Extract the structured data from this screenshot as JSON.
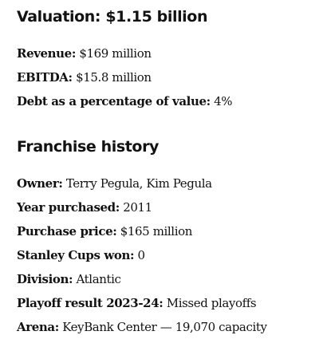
{
  "valuation_section": {
    "title": "Valuation: $1.15 billion",
    "items": [
      {
        "label": "Revenue:",
        "value": "$169 million"
      },
      {
        "label": "EBITDA:",
        "value": "$15.8 million"
      },
      {
        "label": "Debt as a percentage of value:",
        "value": "4%"
      }
    ]
  },
  "franchise_section": {
    "title": "Franchise history",
    "items": [
      {
        "label": "Owner:",
        "value": "Terry Pegula, Kim Pegula"
      },
      {
        "label": "Year purchased:",
        "value": "2011"
      },
      {
        "label": "Purchase price:",
        "value": "$165 million"
      },
      {
        "label": "Stanley Cups won:",
        "value": "0"
      },
      {
        "label": "Division:",
        "value": "Atlantic"
      },
      {
        "label": "Playoff result 2023-24:",
        "value": "Missed playoffs"
      },
      {
        "label": "Arena:",
        "value": "KeyBank Center — 19,070 capacity"
      }
    ]
  }
}
